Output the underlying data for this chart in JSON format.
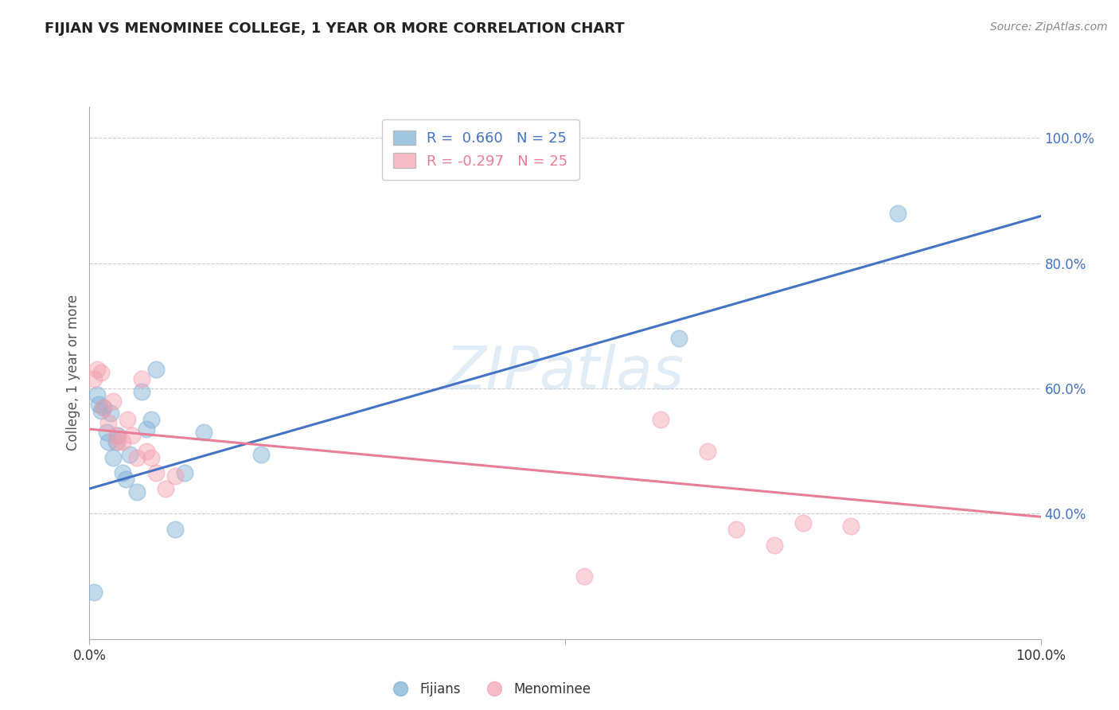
{
  "title": "FIJIAN VS MENOMINEE COLLEGE, 1 YEAR OR MORE CORRELATION CHART",
  "source_text": "Source: ZipAtlas.com",
  "ylabel": "College, 1 year or more",
  "legend_label1": "R =  0.660   N = 25",
  "legend_label2": "R = -0.297   N = 25",
  "legend_bottom1": "Fijians",
  "legend_bottom2": "Menominee",
  "xlim": [
    0.0,
    1.0
  ],
  "ylim": [
    0.2,
    1.05
  ],
  "yticks": [
    0.4,
    0.6,
    0.8,
    1.0
  ],
  "ytick_labels": [
    "40.0%",
    "60.0%",
    "80.0%",
    "100.0%"
  ],
  "watermark": "ZIPatlas",
  "background_color": "#ffffff",
  "fijian_color": "#7bafd4",
  "menominee_color": "#f4a0b0",
  "fijian_line_color": "#4472c4",
  "menominee_line_color": "#e87d96",
  "fijian_points_x": [
    0.005,
    0.008,
    0.01,
    0.012,
    0.015,
    0.018,
    0.02,
    0.022,
    0.025,
    0.028,
    0.03,
    0.035,
    0.038,
    0.042,
    0.05,
    0.055,
    0.06,
    0.065,
    0.07,
    0.09,
    0.1,
    0.12,
    0.18,
    0.62,
    0.85
  ],
  "fijian_points_y": [
    0.275,
    0.59,
    0.575,
    0.565,
    0.57,
    0.53,
    0.515,
    0.56,
    0.49,
    0.515,
    0.525,
    0.465,
    0.455,
    0.495,
    0.435,
    0.595,
    0.535,
    0.55,
    0.63,
    0.375,
    0.465,
    0.53,
    0.495,
    0.68,
    0.88
  ],
  "menominee_points_x": [
    0.005,
    0.008,
    0.012,
    0.015,
    0.02,
    0.025,
    0.028,
    0.03,
    0.035,
    0.04,
    0.045,
    0.05,
    0.055,
    0.06,
    0.065,
    0.07,
    0.08,
    0.09,
    0.52,
    0.6,
    0.65,
    0.68,
    0.72,
    0.75,
    0.8
  ],
  "menominee_points_y": [
    0.615,
    0.63,
    0.625,
    0.57,
    0.545,
    0.58,
    0.525,
    0.515,
    0.515,
    0.55,
    0.525,
    0.49,
    0.615,
    0.5,
    0.49,
    0.465,
    0.44,
    0.46,
    0.3,
    0.55,
    0.5,
    0.375,
    0.35,
    0.385,
    0.38
  ],
  "fijian_line_x": [
    0.0,
    1.0
  ],
  "fijian_line_y": [
    0.44,
    0.875
  ],
  "menominee_line_x": [
    0.0,
    1.0
  ],
  "menominee_line_y": [
    0.535,
    0.395
  ]
}
